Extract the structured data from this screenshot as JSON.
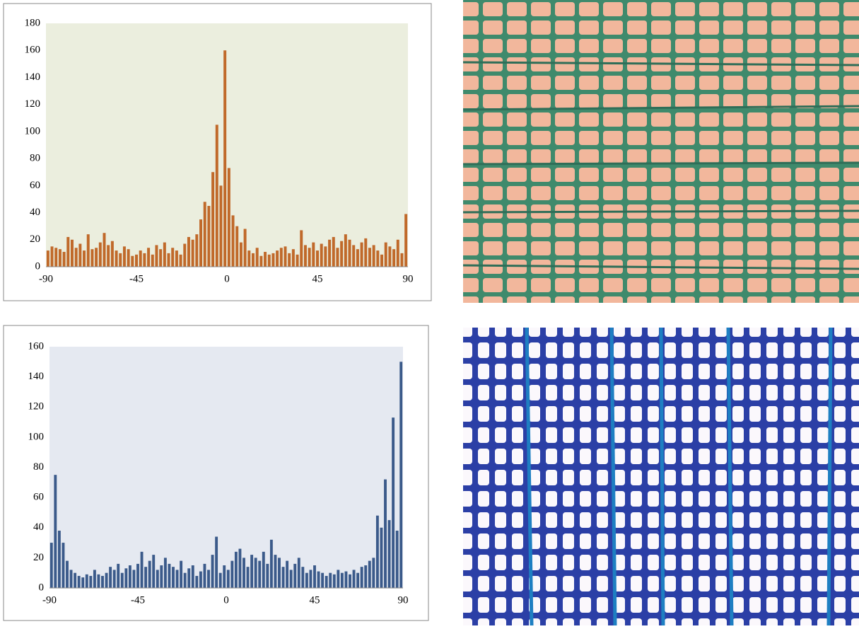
{
  "chart_data": [
    {
      "type": "histogram",
      "color": "#c0692a",
      "plot_background": "#ebeede",
      "bins": [
        -90,
        -88,
        -86,
        -84,
        -82,
        -80,
        -78,
        -76,
        -74,
        -72,
        -70,
        -68,
        -66,
        -64,
        -62,
        -60,
        -58,
        -56,
        -54,
        -52,
        -50,
        -48,
        -46,
        -44,
        -42,
        -40,
        -38,
        -36,
        -34,
        -32,
        -30,
        -28,
        -26,
        -24,
        -22,
        -20,
        -18,
        -16,
        -14,
        -12,
        -10,
        -8,
        -6,
        -4,
        -2,
        0,
        2,
        4,
        6,
        8,
        10,
        12,
        14,
        16,
        18,
        20,
        22,
        24,
        26,
        28,
        30,
        32,
        34,
        36,
        38,
        40,
        42,
        44,
        46,
        48,
        50,
        52,
        54,
        56,
        58,
        60,
        62,
        64,
        66,
        68,
        70,
        72,
        74,
        76,
        78,
        80,
        82,
        84,
        86,
        88,
        90
      ],
      "values": [
        12,
        15,
        14,
        13,
        11,
        22,
        20,
        14,
        17,
        12,
        24,
        13,
        14,
        18,
        25,
        16,
        19,
        12,
        10,
        15,
        13,
        8,
        9,
        12,
        10,
        14,
        9,
        16,
        13,
        18,
        10,
        14,
        12,
        9,
        17,
        22,
        20,
        24,
        35,
        48,
        45,
        70,
        105,
        60,
        160,
        73,
        38,
        30,
        18,
        28,
        12,
        10,
        14,
        8,
        11,
        9,
        10,
        12,
        14,
        15,
        10,
        13,
        9,
        27,
        16,
        14,
        18,
        12,
        17,
        15,
        20,
        22,
        14,
        19,
        24,
        20,
        16,
        13,
        18,
        21,
        14,
        16,
        12,
        9,
        18,
        15,
        13,
        20,
        10,
        39
      ],
      "xlim": [
        -90,
        90
      ],
      "xticks": [
        -90,
        -45,
        0,
        45,
        90
      ],
      "ylim": [
        0,
        180
      ],
      "yticks": [
        0,
        20,
        40,
        60,
        80,
        100,
        120,
        140,
        160,
        180
      ]
    },
    {
      "type": "histogram",
      "color": "#3b5a8a",
      "plot_background": "#e5e9f1",
      "bins": [
        -90,
        -88,
        -86,
        -84,
        -82,
        -80,
        -78,
        -76,
        -74,
        -72,
        -70,
        -68,
        -66,
        -64,
        -62,
        -60,
        -58,
        -56,
        -54,
        -52,
        -50,
        -48,
        -46,
        -44,
        -42,
        -40,
        -38,
        -36,
        -34,
        -32,
        -30,
        -28,
        -26,
        -24,
        -22,
        -20,
        -18,
        -16,
        -14,
        -12,
        -10,
        -8,
        -6,
        -4,
        -2,
        0,
        2,
        4,
        6,
        8,
        10,
        12,
        14,
        16,
        18,
        20,
        22,
        24,
        26,
        28,
        30,
        32,
        34,
        36,
        38,
        40,
        42,
        44,
        46,
        48,
        50,
        52,
        54,
        56,
        58,
        60,
        62,
        64,
        66,
        68,
        70,
        72,
        74,
        76,
        78,
        80,
        82,
        84,
        86,
        88,
        90
      ],
      "values": [
        30,
        75,
        38,
        30,
        18,
        12,
        10,
        8,
        7,
        9,
        8,
        12,
        9,
        8,
        10,
        14,
        12,
        16,
        10,
        13,
        15,
        12,
        16,
        24,
        14,
        18,
        22,
        12,
        15,
        20,
        16,
        14,
        12,
        18,
        10,
        13,
        15,
        8,
        11,
        16,
        12,
        22,
        34,
        10,
        15,
        12,
        18,
        24,
        26,
        20,
        14,
        22,
        20,
        18,
        24,
        16,
        32,
        22,
        20,
        14,
        18,
        12,
        16,
        20,
        14,
        10,
        12,
        15,
        11,
        10,
        8,
        10,
        9,
        12,
        10,
        11,
        9,
        12,
        10,
        14,
        15,
        18,
        20,
        48,
        40,
        72,
        45,
        113,
        38,
        150
      ],
      "xlim": [
        -90,
        90
      ],
      "xticks": [
        -90,
        -45,
        0,
        45,
        90
      ],
      "ylim": [
        0,
        160
      ],
      "yticks": [
        0,
        20,
        40,
        60,
        80,
        100,
        120,
        140,
        160
      ]
    }
  ]
}
